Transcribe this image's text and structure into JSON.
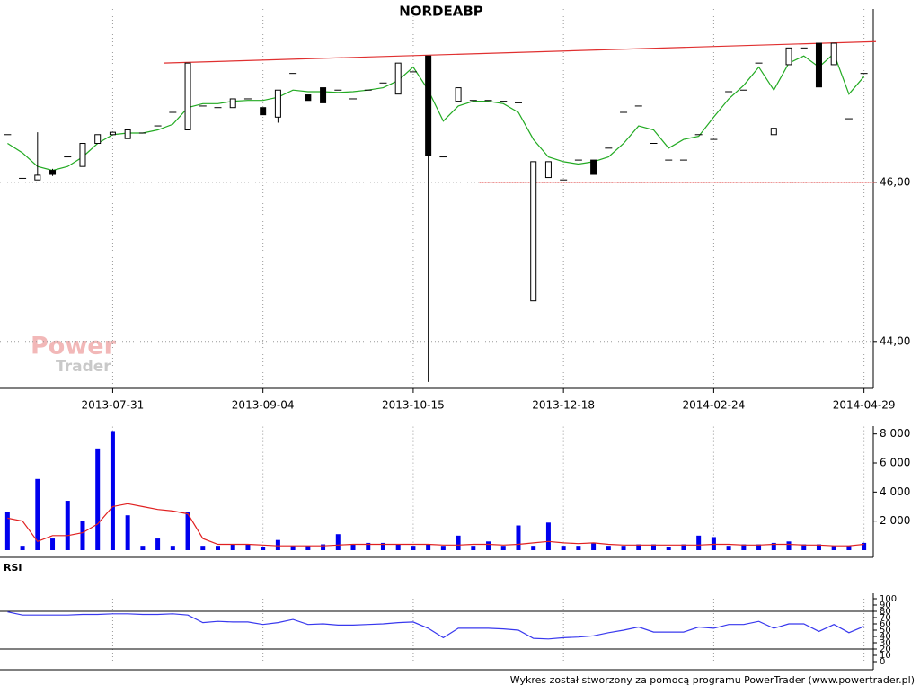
{
  "chart_data": [
    {
      "type": "candlestick",
      "title": "NORDEABP",
      "categories": [
        null,
        null,
        null,
        null,
        null,
        null,
        null,
        "2013-07-31",
        null,
        null,
        null,
        null,
        null,
        null,
        null,
        null,
        null,
        "2013-09-04",
        null,
        null,
        null,
        null,
        null,
        null,
        null,
        null,
        null,
        "2013-10-15",
        null,
        null,
        null,
        null,
        null,
        null,
        null,
        null,
        null,
        "2013-12-18",
        null,
        null,
        null,
        null,
        null,
        null,
        null,
        null,
        null,
        "2014-02-24",
        null,
        null,
        null,
        null,
        null,
        null,
        null,
        null,
        null,
        "2014-04-29"
      ],
      "open": [
        46.6,
        46.05,
        46.03,
        46.15,
        46.32,
        46.2,
        46.49,
        46.6,
        46.55,
        46.62,
        46.71,
        46.88,
        46.66,
        46.96,
        46.94,
        46.94,
        47.05,
        46.94,
        46.82,
        47.37,
        47.1,
        47.19,
        47.16,
        47.05,
        47.16,
        47.25,
        47.11,
        47.39,
        47.59,
        46.32,
        47.02,
        47.03,
        47.03,
        47.02,
        47.0,
        44.51,
        46.06,
        46.03,
        46.28,
        46.28,
        46.43,
        46.88,
        46.96,
        46.49,
        46.28,
        46.28,
        46.6,
        46.54,
        47.14,
        47.16,
        47.5,
        46.6,
        47.48,
        47.69,
        47.75,
        47.48,
        46.8,
        47.37
      ],
      "high": [
        46.6,
        46.05,
        46.63,
        46.17,
        46.32,
        46.49,
        46.6,
        46.63,
        46.66,
        46.62,
        46.71,
        46.88,
        47.5,
        46.96,
        46.94,
        47.05,
        47.05,
        46.94,
        47.16,
        47.37,
        47.1,
        47.19,
        47.16,
        47.05,
        47.16,
        47.25,
        47.5,
        47.39,
        47.59,
        46.32,
        47.19,
        47.03,
        47.03,
        47.02,
        47.0,
        46.26,
        46.26,
        46.03,
        46.28,
        46.28,
        46.43,
        46.88,
        46.96,
        46.49,
        46.28,
        46.28,
        46.6,
        46.54,
        47.14,
        47.16,
        47.5,
        46.68,
        47.69,
        47.69,
        47.75,
        47.75,
        46.8,
        47.37
      ],
      "low": [
        46.6,
        46.05,
        46.03,
        46.08,
        46.32,
        46.2,
        46.49,
        46.6,
        46.55,
        46.62,
        46.71,
        46.88,
        46.66,
        46.96,
        46.94,
        46.94,
        47.05,
        46.85,
        46.75,
        47.37,
        47.03,
        47.0,
        47.16,
        47.05,
        47.16,
        47.25,
        47.11,
        47.39,
        43.49,
        46.32,
        47.02,
        47.03,
        47.03,
        47.02,
        47.0,
        44.51,
        46.06,
        46.03,
        46.28,
        46.1,
        46.43,
        46.88,
        46.96,
        46.49,
        46.28,
        46.28,
        46.6,
        46.54,
        47.14,
        47.16,
        47.5,
        46.6,
        47.48,
        47.69,
        47.2,
        47.48,
        46.8,
        47.37
      ],
      "close": [
        46.6,
        46.05,
        46.09,
        46.1,
        46.32,
        46.49,
        46.6,
        46.63,
        46.66,
        46.62,
        46.71,
        46.88,
        47.5,
        46.96,
        46.94,
        47.05,
        47.05,
        46.85,
        47.16,
        47.37,
        47.03,
        47.0,
        47.16,
        47.05,
        47.16,
        47.25,
        47.5,
        47.39,
        46.34,
        46.32,
        47.19,
        47.03,
        47.03,
        47.02,
        47.0,
        46.26,
        46.26,
        46.03,
        46.28,
        46.1,
        46.43,
        46.88,
        46.96,
        46.49,
        46.28,
        46.28,
        46.6,
        46.54,
        47.14,
        47.16,
        47.5,
        46.68,
        47.69,
        47.69,
        47.2,
        47.75,
        46.8,
        47.37
      ],
      "moving_average": {
        "color": "#22aa22",
        "values": [
          46.49,
          46.37,
          46.2,
          46.15,
          46.2,
          46.32,
          46.49,
          46.6,
          46.62,
          46.62,
          46.66,
          46.73,
          46.94,
          46.99,
          46.99,
          47.02,
          47.03,
          47.03,
          47.07,
          47.16,
          47.14,
          47.14,
          47.13,
          47.14,
          47.16,
          47.19,
          47.28,
          47.45,
          47.16,
          46.77,
          46.96,
          47.02,
          47.02,
          46.99,
          46.88,
          46.54,
          46.32,
          46.26,
          46.23,
          46.26,
          46.32,
          46.49,
          46.71,
          46.66,
          46.43,
          46.54,
          46.58,
          46.82,
          47.05,
          47.22,
          47.45,
          47.16,
          47.5,
          47.59,
          47.45,
          47.62,
          47.11,
          47.33
        ]
      },
      "trendlines": [
        {
          "color": "#e03030",
          "dashed": false,
          "x": [
            10.4,
            57.8
          ],
          "y": [
            47.5,
            47.77
          ]
        },
        {
          "color": "#e03030",
          "dashed": true,
          "x": [
            31.4,
            57.8
          ],
          "y": [
            46.0,
            46.0
          ]
        }
      ],
      "ylim": [
        43.41,
        48.18
      ],
      "yticks": [
        {
          "value": 44,
          "label": "44,00"
        },
        {
          "value": 46,
          "label": "46,00"
        }
      ],
      "grid": true
    },
    {
      "type": "bar",
      "series": [
        {
          "kind": "bar",
          "color": "#0000ee",
          "values": [
            2600,
            300,
            4900,
            800,
            3400,
            2000,
            7000,
            8200,
            2400,
            300,
            800,
            300,
            2600,
            300,
            300,
            400,
            400,
            200,
            700,
            300,
            300,
            400,
            1100,
            400,
            500,
            500,
            400,
            300,
            400,
            300,
            1000,
            300,
            600,
            300,
            1700,
            300,
            1900,
            300,
            300,
            500,
            300,
            300,
            400,
            400,
            200,
            400,
            1000,
            900,
            300,
            400,
            400,
            500,
            600,
            400,
            400,
            300,
            300,
            500
          ]
        },
        {
          "kind": "line",
          "color": "#e02020",
          "values": [
            2200,
            2000,
            600,
            1000,
            1000,
            1200,
            1800,
            3000,
            3200,
            3000,
            2800,
            2700,
            2500,
            800,
            400,
            400,
            400,
            350,
            300,
            300,
            300,
            300,
            350,
            400,
            400,
            400,
            400,
            400,
            400,
            350,
            350,
            400,
            400,
            350,
            400,
            500,
            600,
            500,
            450,
            500,
            400,
            350,
            350,
            350,
            350,
            350,
            350,
            400,
            400,
            350,
            350,
            400,
            400,
            350,
            350,
            300,
            300,
            400
          ]
        }
      ],
      "ylim": [
        0,
        8500
      ],
      "yticks": [
        {
          "value": 2000,
          "label": "2 000"
        },
        {
          "value": 4000,
          "label": "4 000"
        },
        {
          "value": 6000,
          "label": "6 000"
        },
        {
          "value": 8000,
          "label": "8 000"
        }
      ],
      "grid": false
    },
    {
      "type": "line",
      "title": "RSI",
      "series": [
        {
          "color": "#3838ee",
          "values": [
            79,
            74,
            74,
            74,
            74,
            75,
            75,
            76,
            76,
            75,
            75,
            76,
            74,
            62,
            64,
            63,
            63,
            59,
            62,
            67,
            59,
            60,
            58,
            58,
            59,
            60,
            62,
            63,
            53,
            38,
            53,
            53,
            53,
            52,
            50,
            37,
            36,
            38,
            39,
            41,
            46,
            50,
            55,
            47,
            47,
            47,
            55,
            53,
            59,
            59,
            64,
            53,
            60,
            60,
            48,
            59,
            46,
            56
          ]
        }
      ],
      "levels": [
        20,
        80
      ],
      "ylim": [
        0,
        100
      ],
      "yticks": [
        0,
        10,
        20,
        30,
        40,
        50,
        60,
        70,
        80,
        90,
        100
      ],
      "grid": false
    }
  ],
  "logo": {
    "line1": "Power",
    "line2": "Trader"
  },
  "footer": "Wykres został stworzony za pomocą programu PowerTrader (www.powertrader.pl)"
}
